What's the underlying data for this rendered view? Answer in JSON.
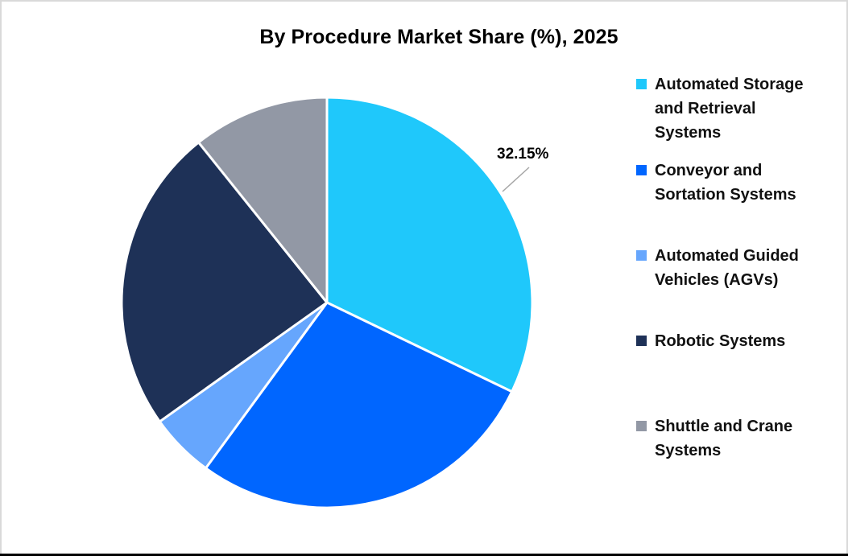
{
  "title": "By Procedure Market Share (%), 2025",
  "chart_data": {
    "type": "pie",
    "title": "By Procedure Market Share (%), 2025",
    "categories": [
      "Automated Storage and Retrieval Systems",
      "Conveyor and Sortation Systems",
      "Automated Guided Vehicles (AGVs)",
      "Robotic Systems",
      "Shuttle and Crane Systems"
    ],
    "values": [
      32.15,
      27.9,
      5.1,
      24.1,
      10.75
    ],
    "colors": [
      "#1fc8fb",
      "#0066ff",
      "#66a6fd",
      "#1e3157",
      "#9298a5"
    ],
    "data_labels": [
      {
        "category": "Automated Storage and Retrieval Systems",
        "text": "32.15%"
      }
    ],
    "start_angle_deg": 0,
    "direction": "clockwise",
    "legend_position": "right"
  },
  "data_label": "32.15%",
  "legend": [
    {
      "label": "Automated Storage and Retrieval Systems",
      "color": "#1fc8fb"
    },
    {
      "label": "Conveyor and Sortation Systems",
      "color": "#0066ff"
    },
    {
      "label": "Automated Guided Vehicles (AGVs)",
      "color": "#66a6fd"
    },
    {
      "label": "Robotic Systems",
      "color": "#1e3157"
    },
    {
      "label": "Shuttle and Crane Systems",
      "color": "#9298a5"
    }
  ]
}
